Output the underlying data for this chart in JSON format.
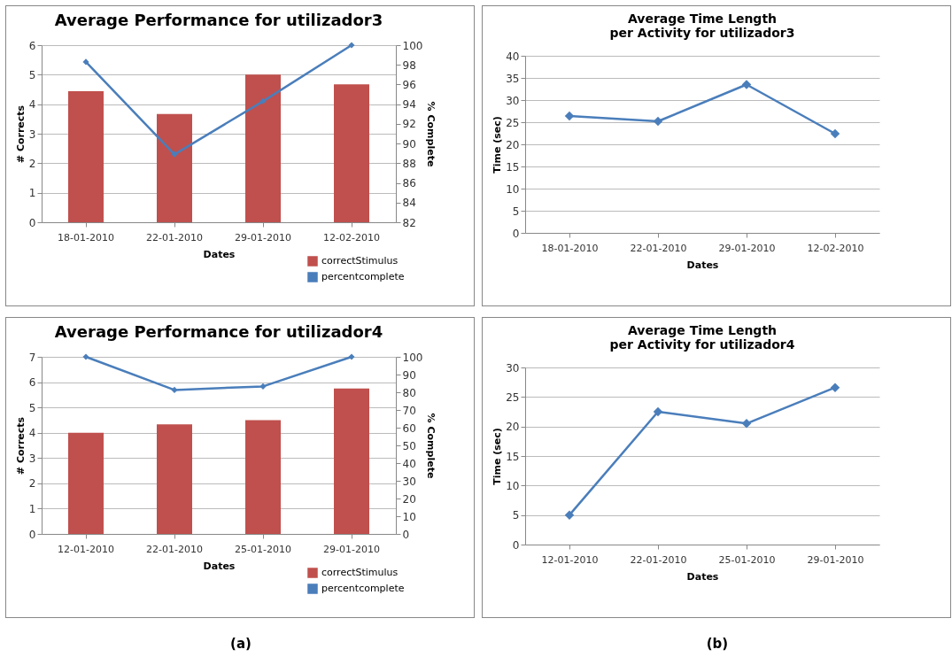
{
  "chart_data": [
    {
      "type": "bar",
      "title": "Average Performance for utilizador3",
      "xlabel": "Dates",
      "ylabel": "# Corrects",
      "y2label": "% Complete",
      "categories": [
        "18-01-2010",
        "22-01-2010",
        "29-01-2010",
        "12-02-2010"
      ],
      "series": [
        {
          "name": "correctStimulus",
          "color": "#c0504d",
          "values": [
            4.44,
            3.67,
            5.0,
            4.67
          ]
        },
        {
          "name": "percentcomplete",
          "type": "line",
          "axis": "y2",
          "color": "#4a7ebb",
          "values": [
            98.3,
            88.9,
            94.3,
            100
          ]
        }
      ],
      "ylim": [
        0,
        6
      ],
      "yticks": [
        0,
        1,
        2,
        3,
        4,
        5,
        6
      ],
      "y2lim": [
        82,
        100
      ],
      "y2ticks": [
        82,
        84,
        86,
        88,
        90,
        92,
        94,
        96,
        98,
        100
      ],
      "grid": "y",
      "legend": "bottom right",
      "marker": "diamond"
    },
    {
      "type": "line",
      "title": "Average Time Length\nper Activity for utilizador3",
      "xlabel": "Dates",
      "ylabel": "Time (sec)",
      "categories": [
        "18-01-2010",
        "22-01-2010",
        "29-01-2010",
        "12-02-2010"
      ],
      "series": [
        {
          "color": "#4a7ebb",
          "values": [
            26.4,
            25.2,
            33.5,
            22.4
          ]
        }
      ],
      "ylim": [
        0,
        40
      ],
      "yticks": [
        0,
        5,
        10,
        15,
        20,
        25,
        30,
        35,
        40
      ],
      "grid": "y",
      "marker": "diamond"
    },
    {
      "type": "bar",
      "title": "Average Performance for utilizador4",
      "xlabel": "Dates",
      "ylabel": "# Corrects",
      "y2label": "% Complete",
      "categories": [
        "12-01-2010",
        "22-01-2010",
        "25-01-2010",
        "29-01-2010"
      ],
      "series": [
        {
          "name": "correctStimulus",
          "color": "#c0504d",
          "values": [
            4.0,
            4.33,
            4.5,
            5.75
          ]
        },
        {
          "name": "percentcomplete",
          "type": "line",
          "axis": "y2",
          "color": "#4a7ebb",
          "values": [
            100,
            81.3,
            83.3,
            100
          ]
        }
      ],
      "ylim": [
        0,
        7
      ],
      "yticks": [
        0,
        1,
        2,
        3,
        4,
        5,
        6,
        7
      ],
      "y2lim": [
        0,
        100
      ],
      "y2ticks": [
        0,
        10,
        20,
        30,
        40,
        50,
        60,
        70,
        80,
        90,
        100
      ],
      "grid": "y",
      "legend": "bottom right",
      "marker": "diamond",
      "annotations": [
        "(a)"
      ]
    },
    {
      "type": "line",
      "title": "Average Time Length\nper Activity for utilizador4",
      "xlabel": "Dates",
      "ylabel": "Time (sec)",
      "categories": [
        "12-01-2010",
        "22-01-2010",
        "25-01-2010",
        "29-01-2010"
      ],
      "series": [
        {
          "color": "#4a7ebb",
          "values": [
            5.0,
            22.5,
            20.5,
            26.6
          ]
        }
      ],
      "ylim": [
        0,
        30
      ],
      "yticks": [
        0,
        5,
        10,
        15,
        20,
        25,
        30
      ],
      "grid": "y",
      "marker": "diamond",
      "annotations": [
        "(b)"
      ]
    }
  ]
}
